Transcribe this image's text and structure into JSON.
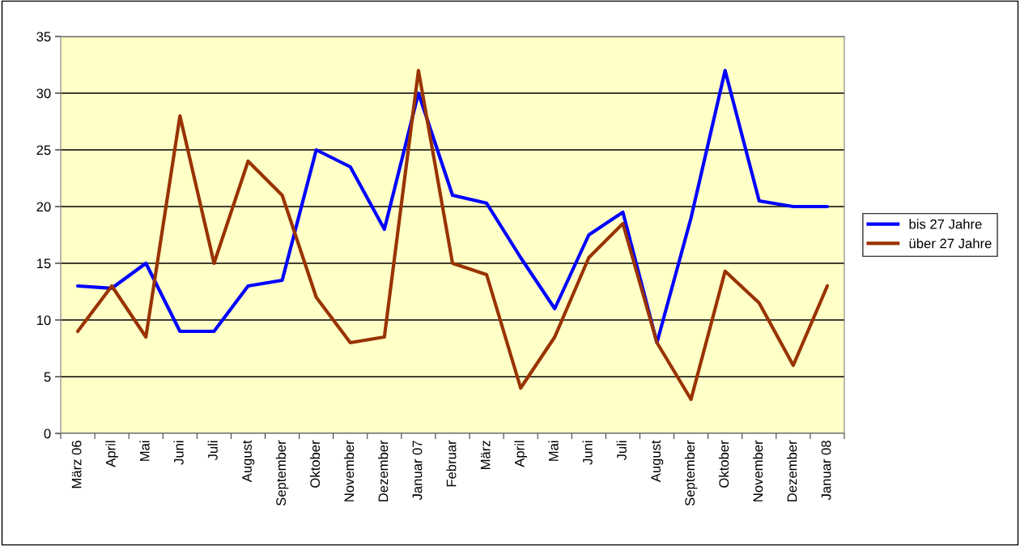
{
  "chart_data": {
    "type": "line",
    "categories": [
      "März 06",
      "April",
      "Mai",
      "Juni",
      "Juli",
      "August",
      "September",
      "Oktober",
      "November",
      "Dezember",
      "Januar 07",
      "Februar",
      "März",
      "April",
      "Mai",
      "Juni",
      "Juli",
      "August",
      "September",
      "Oktober",
      "November",
      "Dezember",
      "Januar 08"
    ],
    "series": [
      {
        "name": "bis 27 Jahre",
        "color": "#0000ff",
        "values": [
          13,
          12.8,
          15,
          9,
          9,
          13,
          13.5,
          25,
          23.5,
          18,
          30,
          21,
          20.3,
          15.5,
          11,
          17.5,
          19.5,
          8,
          19,
          32,
          20.5,
          20,
          20
        ]
      },
      {
        "name": "über 27 Jahre",
        "color": "#993300",
        "values": [
          9,
          13,
          8.5,
          28,
          15,
          24,
          21,
          12,
          8,
          8.5,
          32,
          15,
          14,
          4,
          8.5,
          15.5,
          18.5,
          8,
          3,
          14.3,
          11.5,
          6,
          13
        ]
      }
    ],
    "ylim": [
      0,
      35
    ],
    "yticks": [
      0,
      5,
      10,
      15,
      20,
      25,
      30,
      35
    ],
    "grid": "y",
    "legend": "right",
    "marker": "none",
    "line_style": "solid"
  }
}
